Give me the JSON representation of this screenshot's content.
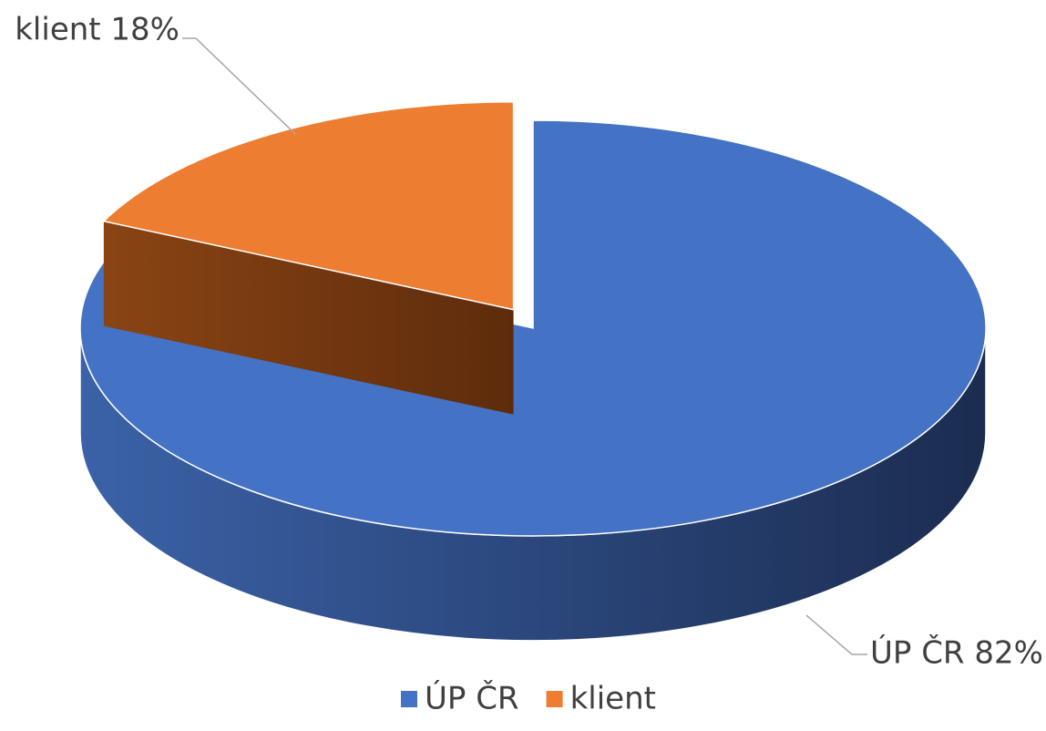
{
  "chart_data": {
    "type": "pie",
    "categories": [
      "ÚP ČR",
      "klient"
    ],
    "values": [
      82,
      18
    ],
    "value_labels": [
      "ÚP ČR 82%",
      "klient 18%"
    ],
    "colors": [
      "#4472c4",
      "#ed7d31"
    ],
    "legend": "bottom"
  }
}
